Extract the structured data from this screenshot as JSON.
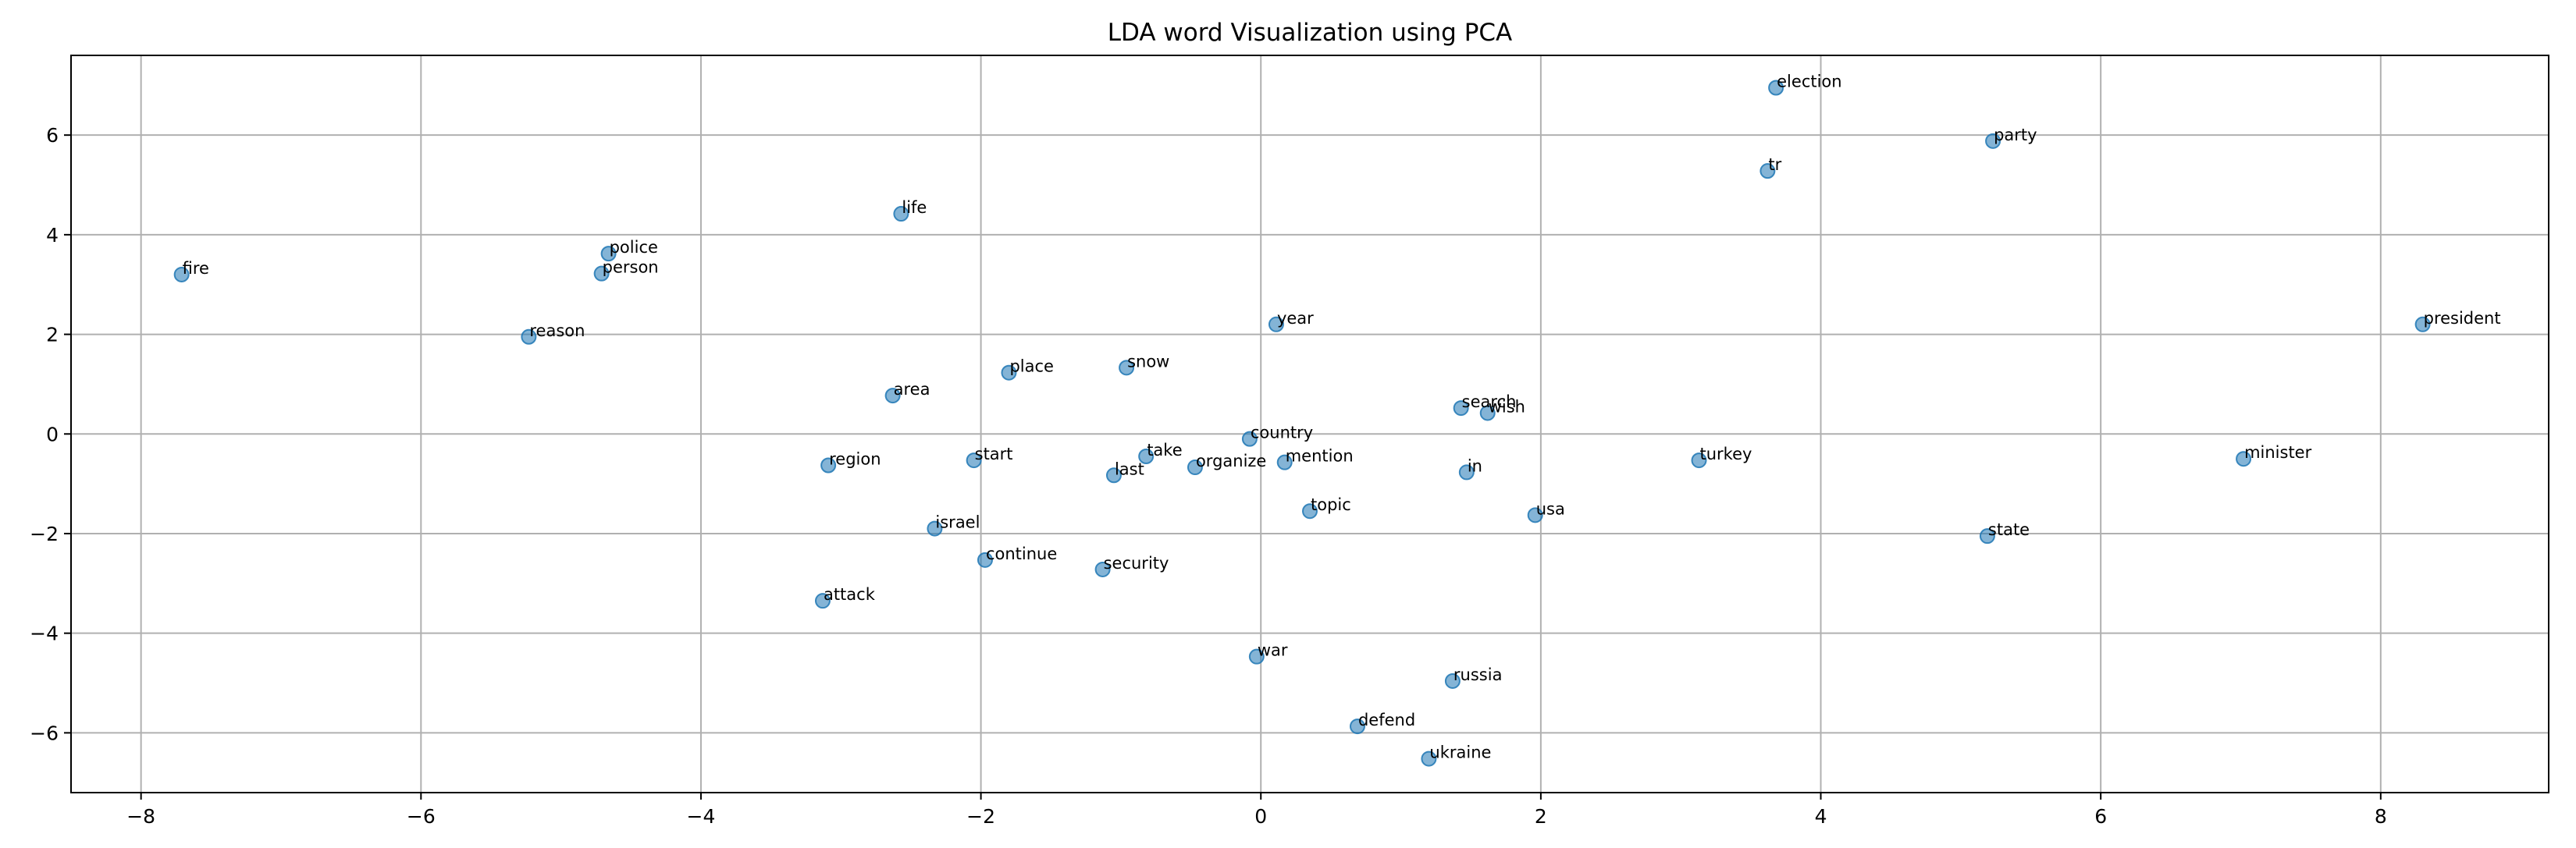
{
  "chart_data": {
    "type": "scatter",
    "title": "LDA word Visualization using PCA",
    "xlabel": "",
    "ylabel": "",
    "xlim": [
      -8.5,
      9.2
    ],
    "ylim": [
      -7.2,
      7.6
    ],
    "xticks": [
      -8,
      -6,
      -4,
      -2,
      0,
      2,
      4,
      6,
      8
    ],
    "yticks": [
      -6,
      -4,
      -2,
      0,
      2,
      4,
      6
    ],
    "xtick_labels": [
      "−8",
      "−6",
      "−4",
      "−2",
      "0",
      "2",
      "4",
      "6",
      "8"
    ],
    "ytick_labels": [
      "−6",
      "−4",
      "−2",
      "0",
      "2",
      "4",
      "6"
    ],
    "grid": true,
    "marker_color": "#1f77b4",
    "points": [
      {
        "label": "election",
        "x": 3.68,
        "y": 6.95
      },
      {
        "label": "party",
        "x": 5.23,
        "y": 5.88
      },
      {
        "label": "tr",
        "x": 3.62,
        "y": 5.28
      },
      {
        "label": "life",
        "x": -2.57,
        "y": 4.42
      },
      {
        "label": "police",
        "x": -4.66,
        "y": 3.62
      },
      {
        "label": "person",
        "x": -4.71,
        "y": 3.22
      },
      {
        "label": "fire",
        "x": -7.71,
        "y": 3.2
      },
      {
        "label": "reason",
        "x": -5.23,
        "y": 1.95
      },
      {
        "label": "year",
        "x": 0.11,
        "y": 2.2
      },
      {
        "label": "president",
        "x": 8.3,
        "y": 2.2
      },
      {
        "label": "snow",
        "x": -0.96,
        "y": 1.33
      },
      {
        "label": "place",
        "x": -1.8,
        "y": 1.23
      },
      {
        "label": "area",
        "x": -2.63,
        "y": 0.77
      },
      {
        "label": "search",
        "x": 1.43,
        "y": 0.52
      },
      {
        "label": "wish",
        "x": 1.62,
        "y": 0.42
      },
      {
        "label": "country",
        "x": -0.08,
        "y": -0.1
      },
      {
        "label": "start",
        "x": -2.05,
        "y": -0.53
      },
      {
        "label": "take",
        "x": -0.82,
        "y": -0.45
      },
      {
        "label": "mention",
        "x": 0.17,
        "y": -0.57
      },
      {
        "label": "turkey",
        "x": 3.13,
        "y": -0.53
      },
      {
        "label": "minister",
        "x": 7.02,
        "y": -0.5
      },
      {
        "label": "region",
        "x": -3.09,
        "y": -0.63
      },
      {
        "label": "organize",
        "x": -0.47,
        "y": -0.67
      },
      {
        "label": "last",
        "x": -1.05,
        "y": -0.83
      },
      {
        "label": "in",
        "x": 1.47,
        "y": -0.77
      },
      {
        "label": "topic",
        "x": 0.35,
        "y": -1.55
      },
      {
        "label": "usa",
        "x": 1.96,
        "y": -1.63
      },
      {
        "label": "israel",
        "x": -2.33,
        "y": -1.9
      },
      {
        "label": "state",
        "x": 5.19,
        "y": -2.05
      },
      {
        "label": "continue",
        "x": -1.97,
        "y": -2.53
      },
      {
        "label": "security",
        "x": -1.13,
        "y": -2.72
      },
      {
        "label": "attack",
        "x": -3.13,
        "y": -3.35
      },
      {
        "label": "war",
        "x": -0.03,
        "y": -4.47
      },
      {
        "label": "russia",
        "x": 1.37,
        "y": -4.96
      },
      {
        "label": "defend",
        "x": 0.69,
        "y": -5.87
      },
      {
        "label": "ukraine",
        "x": 1.2,
        "y": -6.52
      }
    ]
  }
}
